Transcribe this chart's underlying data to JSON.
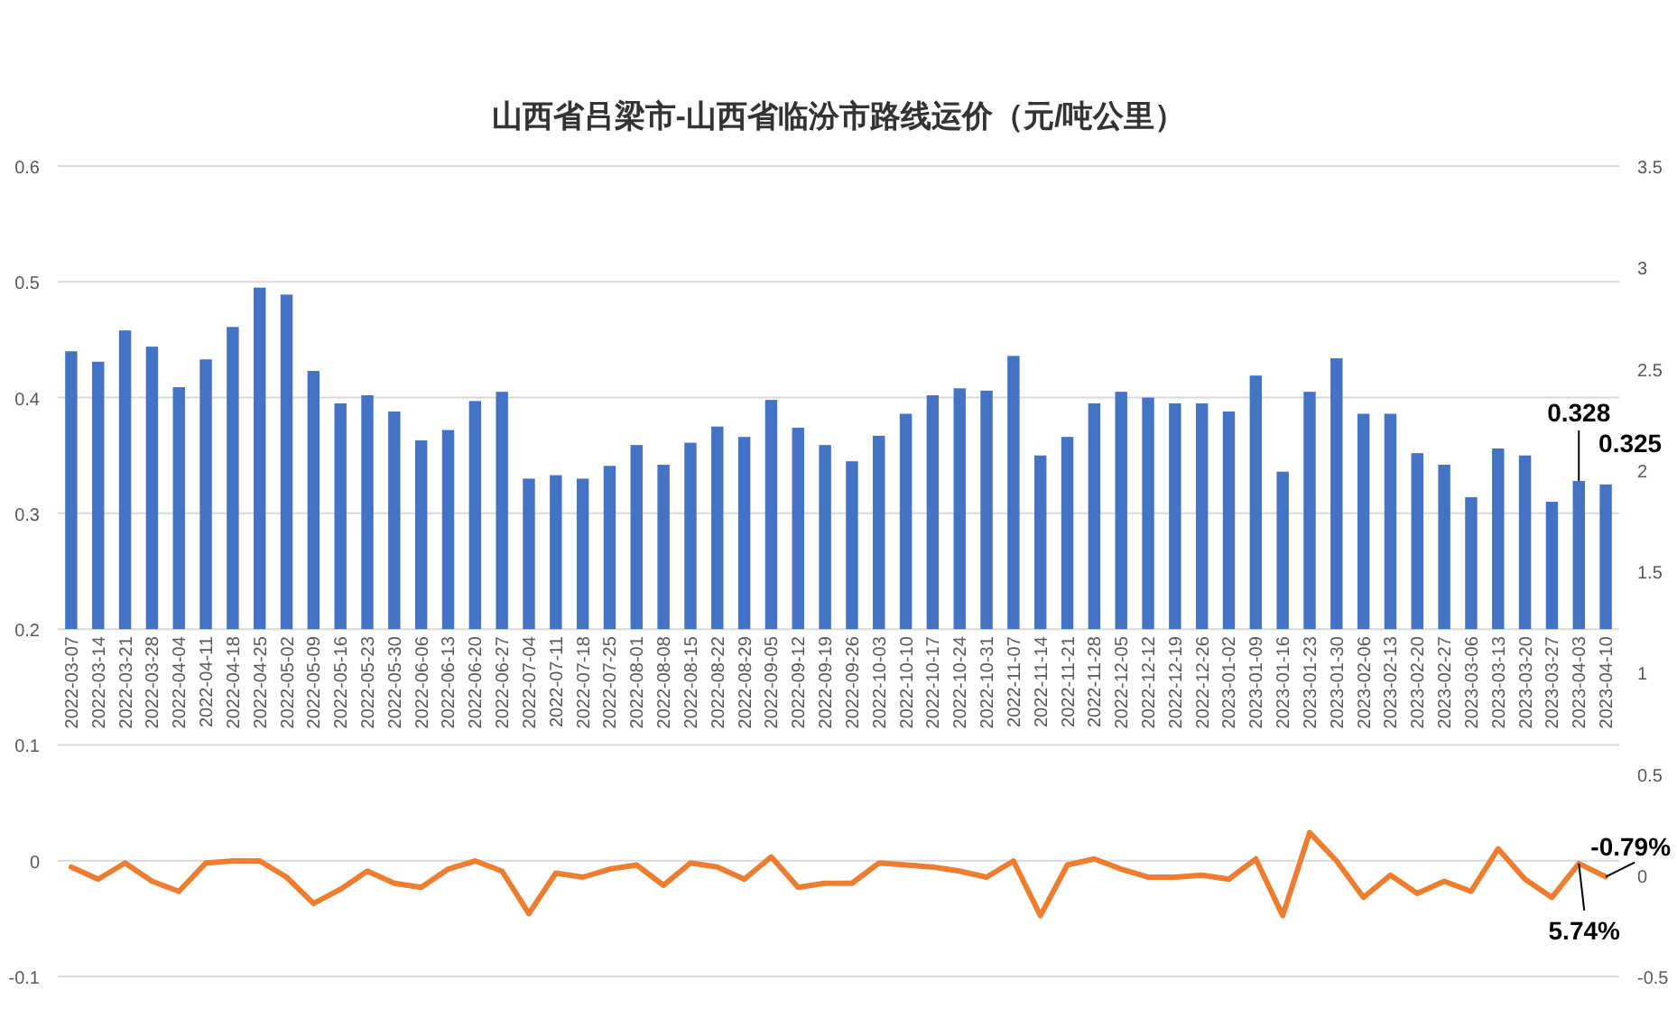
{
  "chart_data": {
    "type": "bar",
    "title": "山西省吕梁市-山西省临汾市路线运价（元/吨公里）",
    "categories": [
      "2022-03-07",
      "2022-03-14",
      "2022-03-21",
      "2022-03-28",
      "2022-04-04",
      "2022-04-11",
      "2022-04-18",
      "2022-04-25",
      "2022-05-02",
      "2022-05-09",
      "2022-05-16",
      "2022-05-23",
      "2022-05-30",
      "2022-06-06",
      "2022-06-13",
      "2022-06-20",
      "2022-06-27",
      "2022-07-04",
      "2022-07-11",
      "2022-07-18",
      "2022-07-25",
      "2022-08-01",
      "2022-08-08",
      "2022-08-15",
      "2022-08-22",
      "2022-08-29",
      "2022-09-05",
      "2022-09-12",
      "2022-09-19",
      "2022-09-26",
      "2022-10-03",
      "2022-10-10",
      "2022-10-17",
      "2022-10-24",
      "2022-10-31",
      "2022-11-07",
      "2022-11-14",
      "2022-11-21",
      "2022-11-28",
      "2022-12-05",
      "2022-12-12",
      "2022-12-19",
      "2022-12-26",
      "2023-01-02",
      "2023-01-09",
      "2023-01-16",
      "2023-01-23",
      "2023-01-30",
      "2023-02-06",
      "2023-02-13",
      "2023-02-20",
      "2023-02-27",
      "2023-03-06",
      "2023-03-13",
      "2023-03-20",
      "2023-03-27",
      "2023-04-03",
      "2023-04-10"
    ],
    "series": [
      {
        "color": "#4472c4",
        "base": [
          0.2,
          0.2,
          0.2,
          0.2,
          0.2,
          0.2,
          0.2,
          0.2,
          0.2,
          0.2,
          0.2,
          0.2,
          0.2,
          0.2,
          0.2,
          0.2,
          0.2,
          0.2,
          0.2,
          0.2,
          0.2,
          0.2,
          0.2,
          0.2,
          0.2,
          0.2,
          0.2,
          0.2,
          0.2,
          0.2,
          0.2,
          0.2,
          0.2,
          0.2,
          0.2,
          0.2,
          0.2,
          0.2,
          0.2,
          0.2,
          0.2,
          0.2,
          0.2,
          0.2,
          0.2,
          0.2,
          0.2,
          0.2,
          0.2,
          0.2,
          0.2,
          0.2,
          0.2,
          0.2,
          0.2,
          0.2,
          0.2,
          0.2
        ],
        "values": [
          0.24,
          0.231,
          0.258,
          0.244,
          0.209,
          0.233,
          0.261,
          0.295,
          0.289,
          0.223,
          0.195,
          0.202,
          0.188,
          0.163,
          0.172,
          0.197,
          0.205,
          0.13,
          0.133,
          0.13,
          0.141,
          0.159,
          0.142,
          0.161,
          0.175,
          0.166,
          0.198,
          0.174,
          0.159,
          0.145,
          0.167,
          0.186,
          0.202,
          0.208,
          0.206,
          0.236,
          0.15,
          0.166,
          0.195,
          0.205,
          0.2,
          0.195,
          0.195,
          0.188,
          0.219,
          0.136,
          0.205,
          0.234,
          0.186,
          0.186,
          0.152,
          0.142,
          0.114,
          0.156,
          0.15,
          0.11,
          0.128,
          0.125
        ],
        "value_labels": [
          null,
          null,
          null,
          null,
          null,
          null,
          null,
          null,
          null,
          null,
          null,
          null,
          null,
          null,
          null,
          null,
          null,
          null,
          null,
          null,
          null,
          null,
          null,
          null,
          null,
          null,
          null,
          null,
          null,
          null,
          null,
          null,
          null,
          null,
          null,
          null,
          null,
          null,
          null,
          null,
          null,
          null,
          null,
          null,
          null,
          null,
          null,
          null,
          null,
          null,
          null,
          null,
          null,
          null,
          null,
          null,
          "0.328",
          "0.325"
        ]
      },
      {
        "type": "line",
        "axis": "y2",
        "color": "#ed7d31",
        "values": [
          0.04,
          -0.02,
          0.06,
          -0.03,
          -0.08,
          0.06,
          0.07,
          0.07,
          -0.01,
          -0.14,
          -0.07,
          0.02,
          -0.04,
          -0.06,
          0.03,
          0.07,
          0.02,
          -0.19,
          0.01,
          -0.01,
          0.03,
          0.05,
          -0.05,
          0.06,
          0.04,
          -0.02,
          0.09,
          -0.06,
          -0.04,
          -0.04,
          0.06,
          0.05,
          0.04,
          0.02,
          -0.01,
          0.07,
          -0.2,
          0.05,
          0.08,
          0.03,
          -0.01,
          -0.01,
          0,
          -0.02,
          0.08,
          -0.2,
          0.21,
          0.07,
          -0.11,
          0,
          -0.09,
          -0.03,
          -0.08,
          0.13,
          -0.02,
          -0.11,
          0.0574,
          -0.0079
        ],
        "value_labels": [
          null,
          null,
          null,
          null,
          null,
          null,
          null,
          null,
          null,
          null,
          null,
          null,
          null,
          null,
          null,
          null,
          null,
          null,
          null,
          null,
          null,
          null,
          null,
          null,
          null,
          null,
          null,
          null,
          null,
          null,
          null,
          null,
          null,
          null,
          null,
          null,
          null,
          null,
          null,
          null,
          null,
          null,
          null,
          null,
          null,
          null,
          null,
          null,
          null,
          null,
          null,
          null,
          null,
          null,
          null,
          null,
          "5.74%",
          "-0.79%"
        ]
      }
    ],
    "ylim": [
      -0.1,
      0.6
    ],
    "yticks": [
      0.6,
      0.5,
      0.4,
      0.3,
      0.2,
      0.1,
      0,
      -0.1
    ],
    "y2lim": [
      -0.5,
      3.5
    ],
    "y2ticks": [
      3.5,
      3,
      2.5,
      2,
      1.5,
      1,
      0.5,
      0,
      -0.5
    ],
    "grid": "y"
  }
}
